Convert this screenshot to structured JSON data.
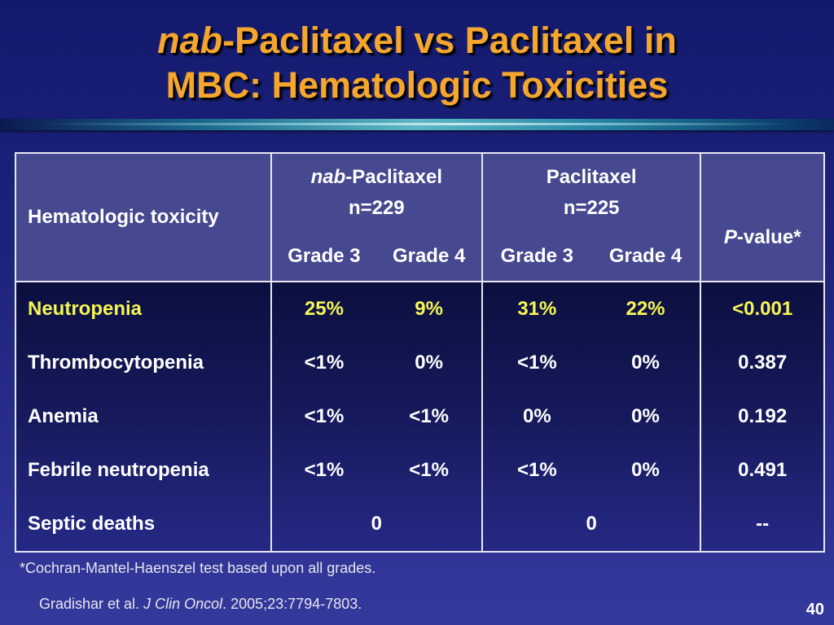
{
  "title": {
    "prefix_italic": "nab",
    "line1_rest": "-Paclitaxel vs Paclitaxel in",
    "line2": "MBC: Hematologic Toxicities"
  },
  "table": {
    "header": {
      "row_label": "Hematologic toxicity",
      "group1_italic": "nab",
      "group1_rest": "-Paclitaxel",
      "group1_n": "n=229",
      "group2_name": "Paclitaxel",
      "group2_n": "n=225",
      "pvalue_italic": "P",
      "pvalue_rest": "-value*",
      "grade3": "Grade 3",
      "grade4": "Grade 4"
    },
    "rows": [
      {
        "label": "Neutropenia",
        "nab_g3": "25%",
        "nab_g4": "9%",
        "pac_g3": "31%",
        "pac_g4": "22%",
        "p": "<0.001",
        "highlight": true
      },
      {
        "label": "Thrombocytopenia",
        "nab_g3": "<1%",
        "nab_g4": "0%",
        "pac_g3": "<1%",
        "pac_g4": "0%",
        "p": "0.387"
      },
      {
        "label": "Anemia",
        "nab_g3": "<1%",
        "nab_g4": "<1%",
        "pac_g3": "0%",
        "pac_g4": "0%",
        "p": "0.192"
      },
      {
        "label": "Febrile neutropenia",
        "nab_g3": "<1%",
        "nab_g4": "<1%",
        "pac_g3": "<1%",
        "pac_g4": "0%",
        "p": "0.491"
      },
      {
        "label": "Septic deaths",
        "nab_all": "0",
        "pac_all": "0",
        "p": "--"
      }
    ]
  },
  "footnote": "*Cochran-Mantel-Haenszel test based upon all grades.",
  "citation": {
    "authors": "Gradishar et al.",
    "journal": "J Clin Oncol",
    "details": ". 2005;23:7794-7803."
  },
  "page_number": "40",
  "colors": {
    "title": "#f5a62c",
    "highlight_row": "#f5f554",
    "header_bg": "#46498f",
    "background": "#1d237a"
  }
}
